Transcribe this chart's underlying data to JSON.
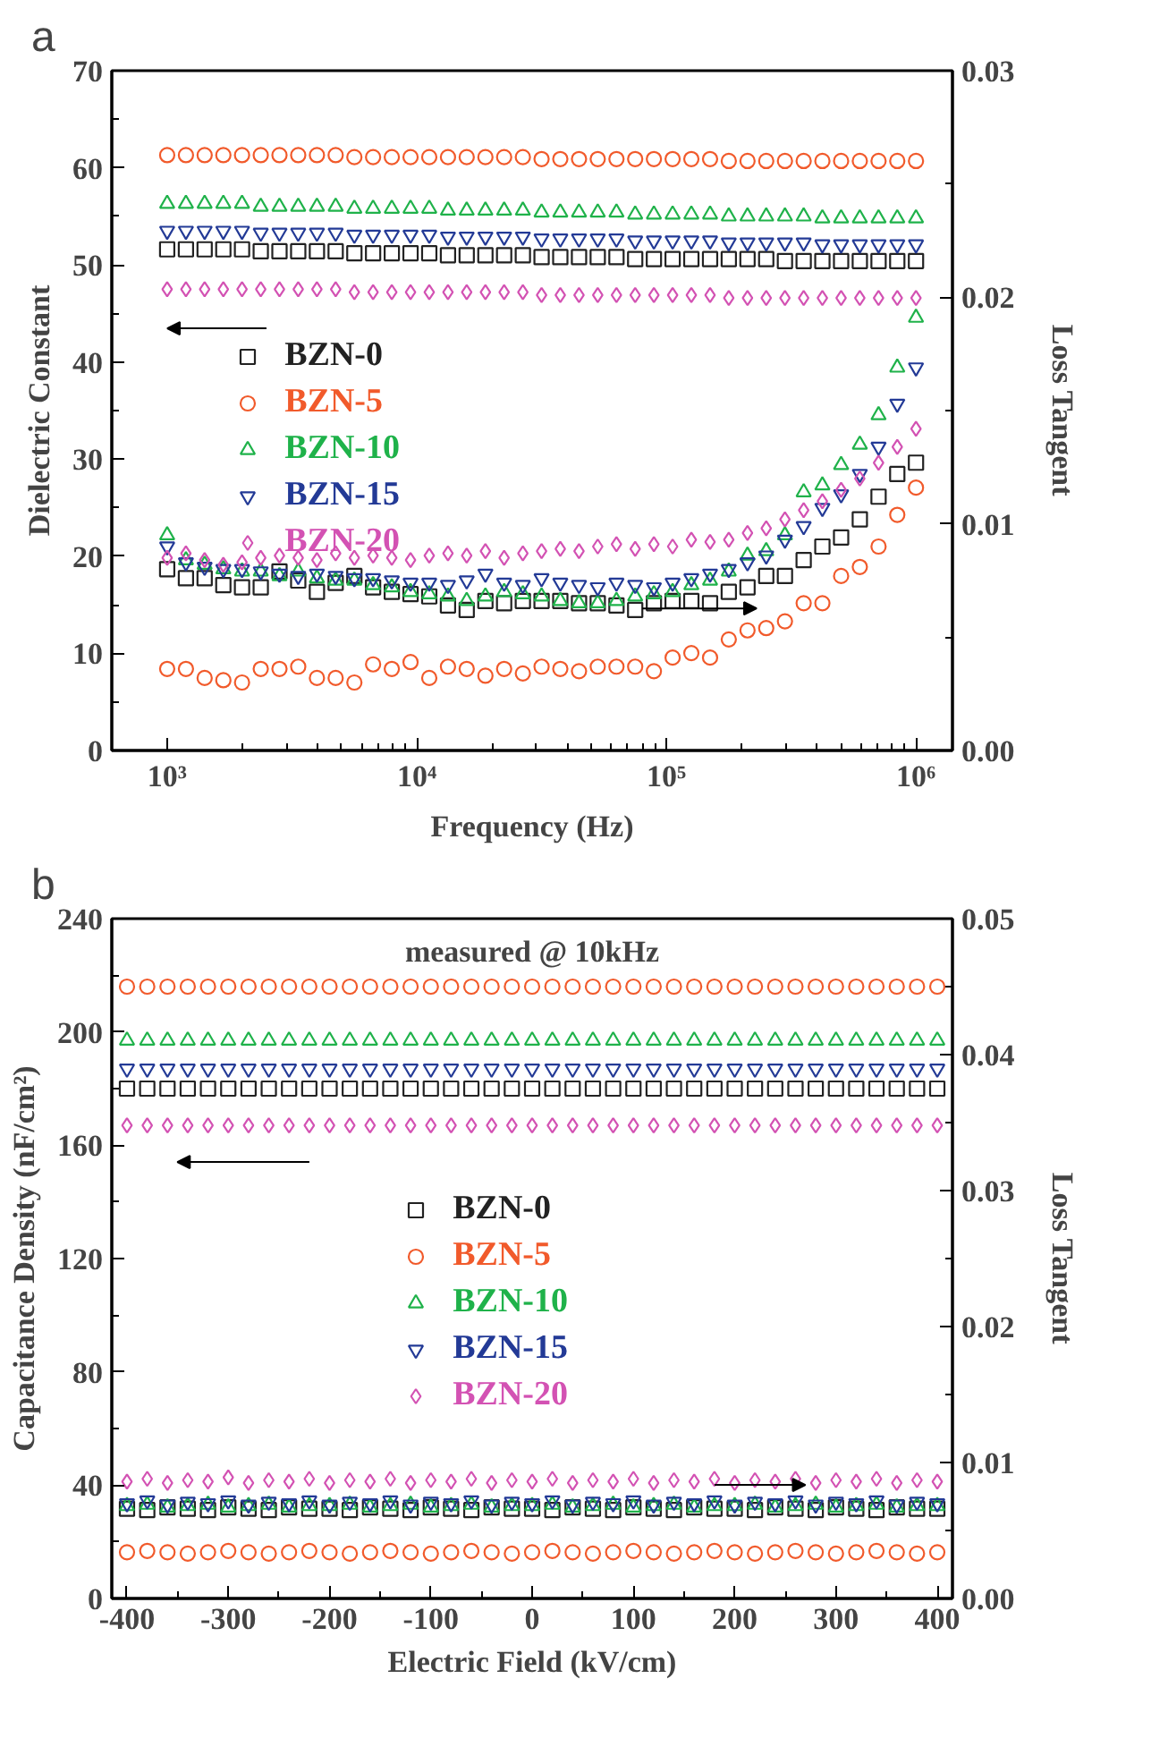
{
  "chart_data": [
    {
      "type": "scatter",
      "title": "a",
      "xlabel": "Frequency (Hz)",
      "ylabel": "Dielectric Constant",
      "y2label": "Loss Tangent",
      "log": "x",
      "legend": "left",
      "xlim": [
        600,
        1400000
      ],
      "xticks": [
        {
          "value": 1000,
          "label": "10³"
        },
        {
          "value": 10000,
          "label": "10⁴"
        },
        {
          "value": 100000,
          "label": "10⁵"
        },
        {
          "value": 1000000,
          "label": "10⁶"
        }
      ],
      "ylim": [
        0,
        70
      ],
      "yticks": [
        0,
        10,
        20,
        30,
        40,
        50,
        60,
        70
      ],
      "y2lim": [
        0,
        0.03
      ],
      "y2ticks": [
        {
          "value": 0,
          "label": "0.00"
        },
        {
          "value": 0.01,
          "label": "0.01"
        },
        {
          "value": 0.02,
          "label": "0.02"
        },
        {
          "value": 0.03,
          "label": "0.03"
        }
      ],
      "x": [
        1000,
        1189,
        1413,
        1679,
        1995,
        2371,
        2818,
        3350,
        3981,
        4732,
        5623,
        6683,
        7943,
        9441,
        11220,
        13335,
        15849,
        18836,
        22387,
        26607,
        31623,
        37584,
        44668,
        53088,
        63096,
        74989,
        89125,
        105925,
        125893,
        149624,
        177828,
        211349,
        251189,
        298538,
        354813,
        421697,
        501187,
        595662,
        707946,
        841395,
        1000000
      ],
      "series": [
        {
          "name": "BZN-0",
          "color": "#222222",
          "marker": "square",
          "values": [
            51.6,
            51.6,
            51.6,
            51.6,
            51.6,
            51.4,
            51.4,
            51.4,
            51.4,
            51.4,
            51.2,
            51.2,
            51.2,
            51.2,
            51.2,
            51.0,
            51.0,
            51.0,
            51.0,
            51.0,
            50.8,
            50.8,
            50.8,
            50.8,
            50.8,
            50.6,
            50.6,
            50.6,
            50.6,
            50.6,
            50.6,
            50.6,
            50.6,
            50.4,
            50.4,
            50.4,
            50.4,
            50.4,
            50.4,
            50.4,
            50.4
          ]
        },
        {
          "name": "BZN-5",
          "color": "#f15a2b",
          "marker": "circle",
          "values": [
            61.3,
            61.3,
            61.3,
            61.3,
            61.3,
            61.3,
            61.3,
            61.3,
            61.3,
            61.3,
            61.1,
            61.1,
            61.1,
            61.1,
            61.1,
            61.1,
            61.1,
            61.1,
            61.1,
            61.1,
            60.9,
            60.9,
            60.9,
            60.9,
            60.9,
            60.9,
            60.9,
            60.9,
            60.9,
            60.9,
            60.7,
            60.7,
            60.7,
            60.7,
            60.7,
            60.7,
            60.7,
            60.7,
            60.7,
            60.7,
            60.7
          ]
        },
        {
          "name": "BZN-10",
          "color": "#1fb24a",
          "marker": "triangle",
          "values": [
            56.3,
            56.3,
            56.3,
            56.3,
            56.3,
            56.0,
            56.0,
            56.0,
            56.0,
            56.0,
            55.8,
            55.8,
            55.8,
            55.8,
            55.8,
            55.6,
            55.6,
            55.6,
            55.6,
            55.6,
            55.4,
            55.4,
            55.4,
            55.4,
            55.4,
            55.2,
            55.2,
            55.2,
            55.2,
            55.2,
            55.0,
            55.0,
            55.0,
            55.0,
            55.0,
            54.8,
            54.8,
            54.8,
            54.8,
            54.8,
            54.8
          ]
        },
        {
          "name": "BZN-15",
          "color": "#233a96",
          "values": [
            53.5,
            53.5,
            53.5,
            53.5,
            53.5,
            53.3,
            53.3,
            53.3,
            53.3,
            53.3,
            53.1,
            53.1,
            53.1,
            53.1,
            53.1,
            52.9,
            52.9,
            52.9,
            52.9,
            52.9,
            52.7,
            52.7,
            52.7,
            52.7,
            52.7,
            52.5,
            52.5,
            52.5,
            52.5,
            52.5,
            52.3,
            52.3,
            52.3,
            52.3,
            52.3,
            52.1,
            52.1,
            52.1,
            52.1,
            52.1,
            52.1
          ]
        },
        {
          "name": "BZN-20",
          "color": "#d352b3",
          "marker": "diamond",
          "values": [
            47.5,
            47.5,
            47.5,
            47.5,
            47.5,
            47.5,
            47.5,
            47.5,
            47.5,
            47.5,
            47.2,
            47.2,
            47.2,
            47.2,
            47.2,
            47.2,
            47.2,
            47.2,
            47.2,
            47.2,
            46.9,
            46.9,
            46.9,
            46.9,
            46.9,
            46.9,
            46.9,
            46.9,
            46.9,
            46.9,
            46.6,
            46.6,
            46.6,
            46.6,
            46.6,
            46.6,
            46.6,
            46.6,
            46.6,
            46.6,
            46.6
          ]
        },
        {
          "color": "#222222",
          "marker": "square",
          "axis": "y2",
          "values": [
            0.008,
            0.0076,
            0.0076,
            0.0073,
            0.0072,
            0.0072,
            0.0079,
            0.0075,
            0.007,
            0.0074,
            0.0077,
            0.0072,
            0.007,
            0.0069,
            0.0068,
            0.0064,
            0.0062,
            0.0066,
            0.0065,
            0.0066,
            0.0066,
            0.0066,
            0.0065,
            0.0065,
            0.0064,
            0.0062,
            0.0065,
            0.0066,
            0.0066,
            0.0065,
            0.007,
            0.0072,
            0.0077,
            0.0077,
            0.0084,
            0.009,
            0.0094,
            0.0102,
            0.0112,
            0.0122,
            0.0127
          ]
        },
        {
          "color": "#f15a2b",
          "marker": "circle",
          "axis": "y2",
          "values": [
            0.0036,
            0.0036,
            0.0032,
            0.0031,
            0.003,
            0.0036,
            0.0036,
            0.0037,
            0.0032,
            0.0032,
            0.003,
            0.0038,
            0.0036,
            0.0039,
            0.0032,
            0.0037,
            0.0036,
            0.0033,
            0.0036,
            0.0034,
            0.0037,
            0.0036,
            0.0035,
            0.0037,
            0.0037,
            0.0037,
            0.0035,
            0.0041,
            0.0043,
            0.0041,
            0.0049,
            0.0053,
            0.0054,
            0.0057,
            0.0065,
            0.0065,
            0.0077,
            0.0081,
            0.009,
            0.0104,
            0.0116
          ]
        },
        {
          "color": "#1fb24a",
          "marker": "triangle",
          "axis": "y2",
          "values": [
            0.0095,
            0.0084,
            0.0082,
            0.008,
            0.0079,
            0.0079,
            0.0077,
            0.0079,
            0.0076,
            0.0075,
            0.0075,
            0.0073,
            0.0072,
            0.007,
            0.0069,
            0.0068,
            0.0066,
            0.0068,
            0.007,
            0.0069,
            0.0068,
            0.0066,
            0.0065,
            0.0065,
            0.0066,
            0.0068,
            0.0069,
            0.007,
            0.0073,
            0.0075,
            0.0079,
            0.0086,
            0.0088,
            0.0095,
            0.0114,
            0.0117,
            0.0126,
            0.0135,
            0.0148,
            0.0169,
            0.0191
          ]
        },
        {
          "color": "#233a96",
          "axis": "y2",
          "values": [
            0.009,
            0.0083,
            0.0081,
            0.008,
            0.008,
            0.0079,
            0.0078,
            0.0077,
            0.0078,
            0.0077,
            0.0076,
            0.0076,
            0.0075,
            0.0074,
            0.0074,
            0.0073,
            0.0075,
            0.0078,
            0.0074,
            0.0073,
            0.0076,
            0.0074,
            0.0073,
            0.0072,
            0.0074,
            0.0073,
            0.0072,
            0.0074,
            0.0076,
            0.0078,
            0.008,
            0.0083,
            0.0086,
            0.0093,
            0.0099,
            0.0107,
            0.0113,
            0.0122,
            0.0134,
            0.0153,
            0.0169
          ]
        },
        {
          "color": "#d352b3",
          "marker": "diamond",
          "axis": "y2",
          "values": [
            0.0085,
            0.0087,
            0.0084,
            0.0082,
            0.0083,
            0.0085,
            0.0086,
            0.0085,
            0.0084,
            0.0087,
            0.0085,
            0.0086,
            0.0085,
            0.0084,
            0.0086,
            0.0087,
            0.0086,
            0.0088,
            0.0085,
            0.0087,
            0.0088,
            0.0089,
            0.0088,
            0.009,
            0.0091,
            0.0089,
            0.0091,
            0.009,
            0.0093,
            0.0092,
            0.0093,
            0.0096,
            0.0098,
            0.0102,
            0.0106,
            0.011,
            0.0115,
            0.012,
            0.0127,
            0.0134,
            0.0142
          ]
        }
      ]
    },
    {
      "type": "scatter",
      "title": "b",
      "xlabel": "Electric Field (kV/cm)",
      "ylabel": "Capacitance Density (nF/cm²)",
      "y2label": "Loss Tangent",
      "legend": "center",
      "annotations": [
        "measured @ 10kHz"
      ],
      "xlim": [
        -415,
        415
      ],
      "xticks": [
        -400,
        -300,
        -200,
        -100,
        0,
        100,
        200,
        300,
        400
      ],
      "ylim": [
        0,
        240
      ],
      "yticks": [
        0,
        40,
        80,
        120,
        160,
        200,
        240
      ],
      "y2lim": [
        0,
        0.05
      ],
      "y2ticks": [
        {
          "value": 0,
          "label": "0.00"
        },
        {
          "value": 0.01,
          "label": "0.01"
        },
        {
          "value": 0.02,
          "label": "0.02"
        },
        {
          "value": 0.03,
          "label": "0.03"
        },
        {
          "value": 0.04,
          "label": "0.04"
        },
        {
          "value": 0.05,
          "label": "0.05"
        }
      ],
      "x": [
        -400,
        -380,
        -360,
        -340,
        -320,
        -300,
        -280,
        -260,
        -240,
        -220,
        -200,
        -180,
        -160,
        -140,
        -120,
        -100,
        -80,
        -60,
        -40,
        -20,
        0,
        20,
        40,
        60,
        80,
        100,
        120,
        140,
        160,
        180,
        200,
        220,
        240,
        260,
        280,
        300,
        320,
        340,
        360,
        380,
        400
      ],
      "series": [
        {
          "name": "BZN-0",
          "color": "#222222",
          "marker": "square",
          "values": [
            180,
            180,
            180,
            180,
            180,
            180,
            180,
            180,
            180,
            180,
            180,
            180,
            180,
            180,
            180,
            180,
            180,
            180,
            180,
            180,
            180,
            180,
            180,
            180,
            180,
            180,
            180,
            180,
            180,
            180,
            180,
            180,
            180,
            180,
            180,
            180,
            180,
            180,
            180,
            180,
            180
          ]
        },
        {
          "name": "BZN-5",
          "color": "#f15a2b",
          "marker": "circle",
          "values": [
            216,
            216,
            216,
            216,
            216,
            216,
            216,
            216,
            216,
            216,
            216,
            216,
            216,
            216,
            216,
            216,
            216,
            216,
            216,
            216,
            216,
            216,
            216,
            216,
            216,
            216,
            216,
            216,
            216,
            216,
            216,
            216,
            216,
            216,
            216,
            216,
            216,
            216,
            216,
            216,
            216
          ]
        },
        {
          "name": "BZN-10",
          "color": "#1fb24a",
          "marker": "triangle",
          "values": [
            197,
            197,
            197,
            197,
            197,
            197,
            197,
            197,
            197,
            197,
            197,
            197,
            197,
            197,
            197,
            197,
            197,
            197,
            197,
            197,
            197,
            197,
            197,
            197,
            197,
            197,
            197,
            197,
            197,
            197,
            197,
            197,
            197,
            197,
            197,
            197,
            197,
            197,
            197,
            197,
            197
          ]
        },
        {
          "name": "BZN-15",
          "color": "#233a96",
          "values": [
            187,
            187,
            187,
            187,
            187,
            187,
            187,
            187,
            187,
            187,
            187,
            187,
            187,
            187,
            187,
            187,
            187,
            187,
            187,
            187,
            187,
            187,
            187,
            187,
            187,
            187,
            187,
            187,
            187,
            187,
            187,
            187,
            187,
            187,
            187,
            187,
            187,
            187,
            187,
            187,
            187
          ]
        },
        {
          "name": "BZN-20",
          "color": "#d352b3",
          "marker": "diamond",
          "values": [
            167,
            167,
            167,
            167,
            167,
            167,
            167,
            167,
            167,
            167,
            167,
            167,
            167,
            167,
            167,
            167,
            167,
            167,
            167,
            167,
            167,
            167,
            167,
            167,
            167,
            167,
            167,
            167,
            167,
            167,
            167,
            167,
            167,
            167,
            167,
            167,
            167,
            167,
            167,
            167,
            167
          ]
        },
        {
          "color": "#222222",
          "marker": "square",
          "axis": "y2",
          "values": [
            0.0066,
            0.0065,
            0.0067,
            0.0066,
            0.0065,
            0.0067,
            0.0066,
            0.0065,
            0.0067,
            0.0066,
            0.0066,
            0.0065,
            0.0067,
            0.0066,
            0.0065,
            0.0067,
            0.0066,
            0.0065,
            0.0067,
            0.0066,
            0.0066,
            0.0065,
            0.0067,
            0.0066,
            0.0065,
            0.0067,
            0.0066,
            0.0065,
            0.0067,
            0.0066,
            0.0066,
            0.0065,
            0.0067,
            0.0066,
            0.0065,
            0.0067,
            0.0066,
            0.0065,
            0.0067,
            0.0066,
            0.0066
          ]
        },
        {
          "color": "#f15a2b",
          "marker": "circle",
          "axis": "y2",
          "values": [
            0.0034,
            0.0035,
            0.0034,
            0.0033,
            0.0034,
            0.0035,
            0.0034,
            0.0033,
            0.0034,
            0.0035,
            0.0034,
            0.0033,
            0.0034,
            0.0035,
            0.0034,
            0.0033,
            0.0034,
            0.0035,
            0.0034,
            0.0033,
            0.0034,
            0.0035,
            0.0034,
            0.0033,
            0.0034,
            0.0035,
            0.0034,
            0.0033,
            0.0034,
            0.0035,
            0.0034,
            0.0033,
            0.0034,
            0.0035,
            0.0034,
            0.0033,
            0.0034,
            0.0035,
            0.0034,
            0.0033,
            0.0034
          ]
        },
        {
          "color": "#1fb24a",
          "marker": "triangle",
          "axis": "y2",
          "values": [
            0.0068,
            0.0069,
            0.0067,
            0.0068,
            0.0069,
            0.0067,
            0.0068,
            0.0069,
            0.0067,
            0.0068,
            0.0068,
            0.0069,
            0.0067,
            0.0068,
            0.0069,
            0.0067,
            0.0068,
            0.0069,
            0.0067,
            0.0068,
            0.0068,
            0.0069,
            0.0067,
            0.0068,
            0.0069,
            0.0067,
            0.0068,
            0.0069,
            0.0067,
            0.0068,
            0.0068,
            0.0069,
            0.0067,
            0.0068,
            0.0069,
            0.0067,
            0.0068,
            0.0069,
            0.0067,
            0.0068,
            0.0068
          ]
        },
        {
          "color": "#233a96",
          "axis": "y2",
          "values": [
            0.007,
            0.0072,
            0.0069,
            0.0071,
            0.007,
            0.0072,
            0.0069,
            0.0071,
            0.007,
            0.0072,
            0.0069,
            0.0071,
            0.007,
            0.0072,
            0.0069,
            0.0071,
            0.007,
            0.0072,
            0.0069,
            0.0071,
            0.007,
            0.0072,
            0.0069,
            0.0071,
            0.007,
            0.0072,
            0.0069,
            0.0071,
            0.007,
            0.0072,
            0.0069,
            0.0071,
            0.007,
            0.0072,
            0.0069,
            0.0071,
            0.007,
            0.0072,
            0.0069,
            0.0071,
            0.007
          ]
        },
        {
          "color": "#d352b3",
          "marker": "diamond",
          "axis": "y2",
          "values": [
            0.0086,
            0.0088,
            0.0085,
            0.0087,
            0.0086,
            0.0089,
            0.0085,
            0.0087,
            0.0086,
            0.0088,
            0.0085,
            0.0087,
            0.0086,
            0.0088,
            0.0085,
            0.0087,
            0.0086,
            0.0088,
            0.0085,
            0.0087,
            0.0086,
            0.0088,
            0.0085,
            0.0087,
            0.0086,
            0.0088,
            0.0085,
            0.0087,
            0.0086,
            0.0088,
            0.0085,
            0.0087,
            0.0086,
            0.0088,
            0.0085,
            0.0087,
            0.0086,
            0.0088,
            0.0085,
            0.0087,
            0.0086
          ]
        }
      ]
    }
  ]
}
